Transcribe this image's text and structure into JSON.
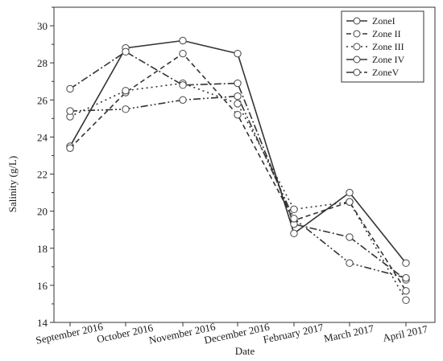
{
  "chart_data": {
    "type": "line",
    "title": "",
    "xlabel": "Date",
    "ylabel": "Salinity  (g/L)",
    "categories": [
      "September 2016",
      "October 2016",
      "November 2016",
      "December 2016",
      "February 2017",
      "March 2017",
      "April 2017"
    ],
    "ylim": [
      14,
      31
    ],
    "yticks": [
      14,
      16,
      18,
      20,
      22,
      24,
      26,
      28,
      30
    ],
    "grid": false,
    "legend_position": "top-right",
    "marker": "open-circle",
    "series": [
      {
        "name": "ZoneI",
        "line_style": "solid",
        "values": [
          23.5,
          28.8,
          29.2,
          28.5,
          18.8,
          21.0,
          17.2
        ]
      },
      {
        "name": "Zone II",
        "line_style": "dash",
        "values": [
          23.4,
          26.4,
          28.5,
          25.2,
          19.5,
          20.5,
          15.7
        ]
      },
      {
        "name": "Zone III",
        "line_style": "dot",
        "values": [
          25.1,
          26.5,
          26.9,
          25.8,
          20.1,
          20.5,
          15.2
        ]
      },
      {
        "name": "Zone IV",
        "line_style": "dash-dot",
        "values": [
          26.6,
          28.6,
          26.8,
          26.9,
          19.3,
          18.6,
          16.3
        ]
      },
      {
        "name": "ZoneV",
        "line_style": "dash-dot-dot",
        "values": [
          25.4,
          25.5,
          26.0,
          26.2,
          19.6,
          17.2,
          16.4
        ]
      }
    ]
  }
}
